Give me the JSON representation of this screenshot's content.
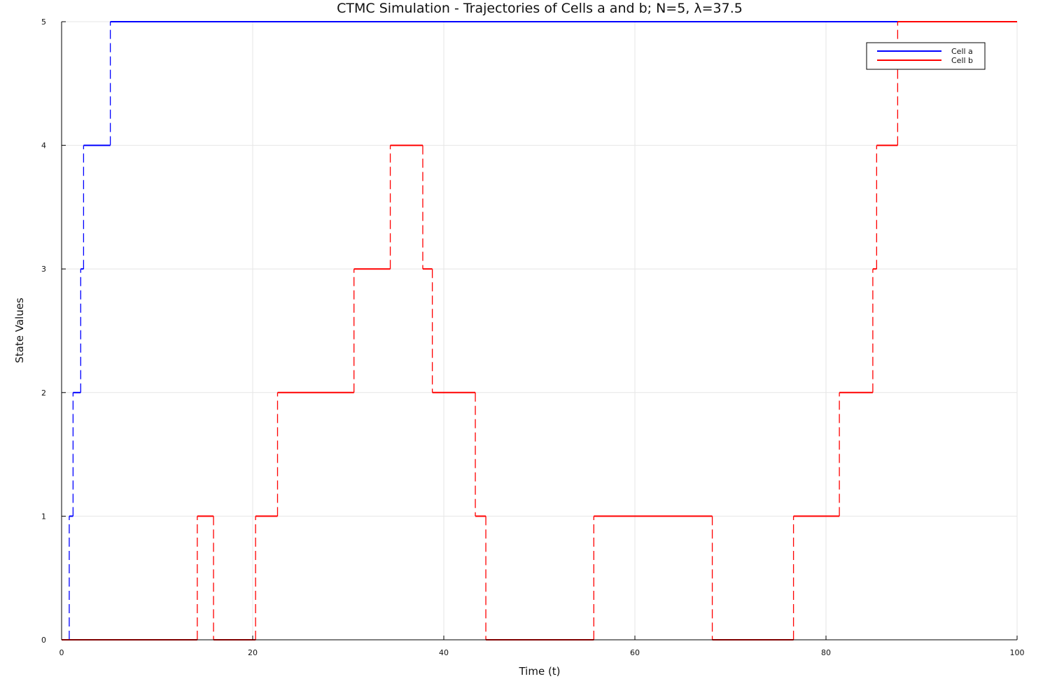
{
  "chart_data": {
    "type": "line",
    "title": "CTMC Simulation - Trajectories of Cells a and b; N=5, λ=37.5",
    "xlabel": "Time (t)",
    "ylabel": "State Values",
    "xlim": [
      0,
      100
    ],
    "ylim": [
      0,
      5
    ],
    "xticks": [
      "0",
      "20",
      "40",
      "60",
      "80",
      "100"
    ],
    "yticks": [
      "0",
      "1",
      "2",
      "3",
      "4",
      "5"
    ],
    "grid": true,
    "legend_position": "top-right",
    "step": true,
    "series": [
      {
        "name": "Cell a",
        "color": "#0000ff",
        "x": [
          0,
          0.8,
          1.2,
          2.0,
          2.3,
          5.1,
          100
        ],
        "y": [
          0,
          1,
          2,
          3,
          4,
          5,
          5
        ]
      },
      {
        "name": "Cell b",
        "color": "#ff0000",
        "x": [
          0,
          14.2,
          15.9,
          20.3,
          22.6,
          30.6,
          34.4,
          37.8,
          38.8,
          43.3,
          44.4,
          55.7,
          68.1,
          76.6,
          81.4,
          84.9,
          85.3,
          87.5,
          100
        ],
        "y": [
          0,
          1,
          0,
          1,
          2,
          3,
          4,
          3,
          2,
          1,
          0,
          1,
          0,
          1,
          2,
          3,
          4,
          5,
          5
        ]
      }
    ]
  }
}
